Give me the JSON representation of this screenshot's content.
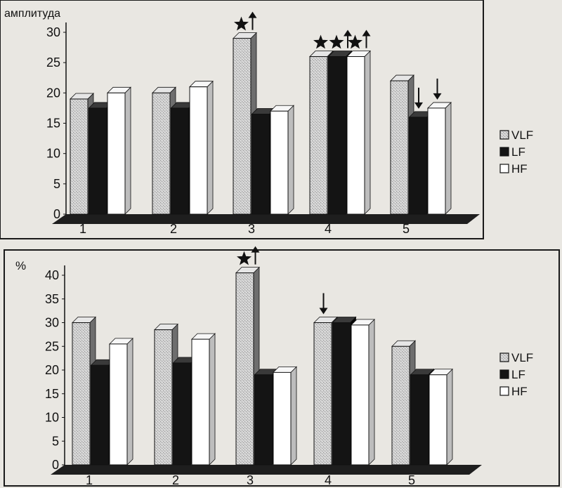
{
  "chart_data": [
    {
      "type": "bar",
      "ylabel": "амплитуда",
      "ylim": [
        0,
        30
      ],
      "yticks": [
        0,
        5,
        10,
        15,
        20,
        25,
        30
      ],
      "categories": [
        "1",
        "2",
        "3",
        "4",
        "5"
      ],
      "legend_position": "right",
      "series": [
        {
          "name": "VLF",
          "values": [
            19,
            20,
            29,
            26,
            22
          ]
        },
        {
          "name": "LF",
          "values": [
            17.5,
            17.5,
            16.5,
            26,
            16
          ]
        },
        {
          "name": "HF",
          "values": [
            20,
            21,
            17,
            26,
            17.5
          ]
        }
      ],
      "annotations": [
        {
          "category": "3",
          "series": "VLF",
          "marks": [
            "star",
            "arrow-up"
          ]
        },
        {
          "category": "4",
          "series": "VLF",
          "marks": [
            "star"
          ]
        },
        {
          "category": "4",
          "series": "LF",
          "marks": [
            "star",
            "arrow-up"
          ]
        },
        {
          "category": "4",
          "series": "HF",
          "marks": [
            "star",
            "arrow-up"
          ]
        },
        {
          "category": "5",
          "series": "LF",
          "marks": [
            "arrow-down"
          ]
        },
        {
          "category": "5",
          "series": "HF",
          "marks": [
            "arrow-down"
          ]
        }
      ]
    },
    {
      "type": "bar",
      "ylabel": "%",
      "ylim": [
        0,
        40
      ],
      "yticks": [
        0,
        5,
        10,
        15,
        20,
        25,
        30,
        35,
        40
      ],
      "categories": [
        "1",
        "2",
        "3",
        "4",
        "5"
      ],
      "legend_position": "right",
      "series": [
        {
          "name": "VLF",
          "values": [
            30,
            28.5,
            40.5,
            30,
            25
          ]
        },
        {
          "name": "LF",
          "values": [
            21,
            21.5,
            19,
            30,
            19
          ]
        },
        {
          "name": "HF",
          "values": [
            25.5,
            26.5,
            19.5,
            29.5,
            19
          ]
        }
      ],
      "annotations": [
        {
          "category": "3",
          "series": "VLF",
          "marks": [
            "star",
            "arrow-up"
          ]
        },
        {
          "category": "4",
          "series": "VLF",
          "marks": [
            "arrow-down"
          ]
        }
      ]
    }
  ],
  "colors": {
    "background": "#e9e7e2",
    "frame": "#1a1a1a",
    "vlf_fill": "#c9c9c9",
    "lf_fill": "#141414",
    "hf_fill": "#ffffff",
    "floor": "#1e1e1e"
  }
}
